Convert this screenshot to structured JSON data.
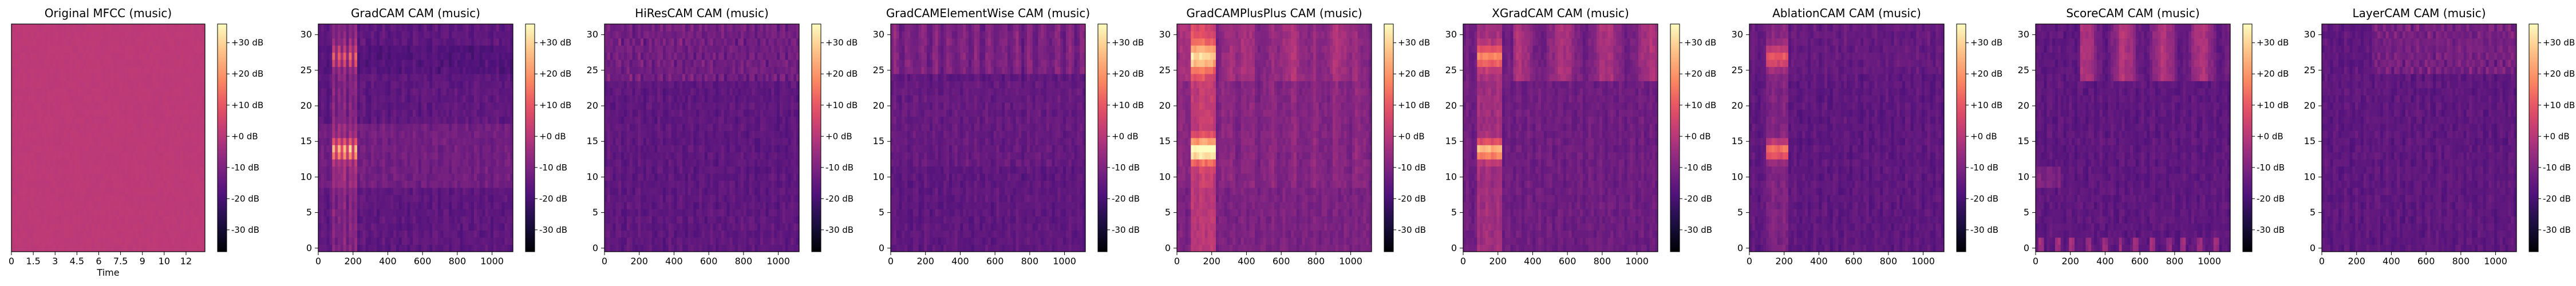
{
  "figure": {
    "colormap": "magma",
    "panels": [
      {
        "title": "Original MFCC (music)",
        "kind": "mfcc"
      },
      {
        "title": "GradCAM CAM (music)",
        "kind": "gradcam"
      },
      {
        "title": "HiResCAM CAM (music)",
        "kind": "hires"
      },
      {
        "title": "GradCAMElementWise CAM (music)",
        "kind": "elementwise"
      },
      {
        "title": "GradCAMPlusPlus CAM (music)",
        "kind": "plusplus"
      },
      {
        "title": "XGradCAM CAM (music)",
        "kind": "xgrad"
      },
      {
        "title": "AblationCAM CAM (music)",
        "kind": "ablation"
      },
      {
        "title": "ScoreCAM CAM (music)",
        "kind": "score"
      },
      {
        "title": "LayerCAM CAM (music)",
        "kind": "layer"
      }
    ]
  },
  "chart_data": [
    {
      "type": "heatmap",
      "title": "Original MFCC (music)",
      "xlabel": "Time",
      "ylabel": "",
      "x_ticks": [
        "0",
        "1.5",
        "3",
        "4.5",
        "6",
        "7.5",
        "9",
        "10",
        "12"
      ],
      "y_ticks": [],
      "colorbar_ticks": [
        "+30 dB",
        "+20 dB",
        "+10 dB",
        "+0 dB",
        "-10 dB",
        "-20 dB",
        "-30 dB"
      ],
      "colorbar_range": [
        -37,
        36
      ],
      "colormap": "magma",
      "description_values": "uniform values near +0 dB across the whole field"
    },
    {
      "type": "heatmap",
      "title": "GradCAM CAM (music)",
      "xlabel": "",
      "ylabel": "",
      "x_ticks": [
        "0",
        "200",
        "400",
        "600",
        "800",
        "1000"
      ],
      "y_ticks": [
        "0",
        "5",
        "10",
        "15",
        "20",
        "25",
        "30"
      ],
      "xlim": [
        0,
        1120
      ],
      "ylim": [
        -0.5,
        31.5
      ],
      "colorbar_ticks": [
        "+30 dB",
        "+20 dB",
        "+10 dB",
        "+0 dB",
        "-10 dB",
        "-20 dB",
        "-30 dB"
      ],
      "colorbar_range": [
        -37,
        36
      ],
      "colormap": "magma"
    },
    {
      "type": "heatmap",
      "title": "HiResCAM CAM (music)",
      "xlabel": "",
      "ylabel": "",
      "x_ticks": [
        "0",
        "200",
        "400",
        "600",
        "800",
        "1000"
      ],
      "y_ticks": [
        "0",
        "5",
        "10",
        "15",
        "20",
        "25",
        "30"
      ],
      "xlim": [
        0,
        1120
      ],
      "ylim": [
        -0.5,
        31.5
      ],
      "colorbar_ticks": [
        "+30 dB",
        "+20 dB",
        "+10 dB",
        "+0 dB",
        "-10 dB",
        "-20 dB",
        "-30 dB"
      ],
      "colorbar_range": [
        -37,
        36
      ],
      "colormap": "magma"
    },
    {
      "type": "heatmap",
      "title": "GradCAMElementWise CAM (music)",
      "xlabel": "",
      "ylabel": "",
      "x_ticks": [
        "0",
        "200",
        "400",
        "600",
        "800",
        "1000"
      ],
      "y_ticks": [
        "0",
        "5",
        "10",
        "15",
        "20",
        "25",
        "30"
      ],
      "xlim": [
        0,
        1120
      ],
      "ylim": [
        -0.5,
        31.5
      ],
      "colorbar_ticks": [
        "+30 dB",
        "+20 dB",
        "+10 dB",
        "+0 dB",
        "-10 dB",
        "-20 dB",
        "-30 dB"
      ],
      "colorbar_range": [
        -37,
        36
      ],
      "colormap": "magma"
    },
    {
      "type": "heatmap",
      "title": "GradCAMPlusPlus CAM (music)",
      "xlabel": "",
      "ylabel": "",
      "x_ticks": [
        "0",
        "200",
        "400",
        "600",
        "800",
        "1000"
      ],
      "y_ticks": [
        "0",
        "5",
        "10",
        "15",
        "20",
        "25",
        "30"
      ],
      "xlim": [
        0,
        1120
      ],
      "ylim": [
        -0.5,
        31.5
      ],
      "colorbar_ticks": [
        "+30 dB",
        "+20 dB",
        "+10 dB",
        "+0 dB",
        "-10 dB",
        "-20 dB",
        "-30 dB"
      ],
      "colorbar_range": [
        -37,
        36
      ],
      "colormap": "magma"
    },
    {
      "type": "heatmap",
      "title": "XGradCAM CAM (music)",
      "xlabel": "",
      "ylabel": "",
      "x_ticks": [
        "0",
        "200",
        "400",
        "600",
        "800",
        "1000"
      ],
      "y_ticks": [
        "0",
        "5",
        "10",
        "15",
        "20",
        "25",
        "30"
      ],
      "xlim": [
        0,
        1120
      ],
      "ylim": [
        -0.5,
        31.5
      ],
      "colorbar_ticks": [
        "+30 dB",
        "+20 dB",
        "+10 dB",
        "+0 dB",
        "-10 dB",
        "-20 dB",
        "-30 dB"
      ],
      "colorbar_range": [
        -37,
        36
      ],
      "colormap": "magma"
    },
    {
      "type": "heatmap",
      "title": "AblationCAM CAM (music)",
      "xlabel": "",
      "ylabel": "",
      "x_ticks": [
        "0",
        "200",
        "400",
        "600",
        "800",
        "1000"
      ],
      "y_ticks": [
        "0",
        "5",
        "10",
        "15",
        "20",
        "25",
        "30"
      ],
      "xlim": [
        0,
        1120
      ],
      "ylim": [
        -0.5,
        31.5
      ],
      "colorbar_ticks": [
        "+30 dB",
        "+20 dB",
        "+10 dB",
        "+0 dB",
        "-10 dB",
        "-20 dB",
        "-30 dB"
      ],
      "colorbar_range": [
        -37,
        36
      ],
      "colormap": "magma"
    },
    {
      "type": "heatmap",
      "title": "ScoreCAM CAM (music)",
      "xlabel": "",
      "ylabel": "",
      "x_ticks": [
        "0",
        "200",
        "400",
        "600",
        "800",
        "1000"
      ],
      "y_ticks": [
        "0",
        "5",
        "10",
        "15",
        "20",
        "25",
        "30"
      ],
      "xlim": [
        0,
        1120
      ],
      "ylim": [
        -0.5,
        31.5
      ],
      "colorbar_ticks": [
        "+30 dB",
        "+20 dB",
        "+10 dB",
        "+0 dB",
        "-10 dB",
        "-20 dB",
        "-30 dB"
      ],
      "colorbar_range": [
        -37,
        36
      ],
      "colormap": "magma"
    },
    {
      "type": "heatmap",
      "title": "LayerCAM CAM (music)",
      "xlabel": "",
      "ylabel": "",
      "x_ticks": [
        "0",
        "200",
        "400",
        "600",
        "800",
        "1000"
      ],
      "y_ticks": [
        "0",
        "5",
        "10",
        "15",
        "20",
        "25",
        "30"
      ],
      "xlim": [
        0,
        1120
      ],
      "ylim": [
        -0.5,
        31.5
      ],
      "colorbar_ticks": [
        "+30 dB",
        "+20 dB",
        "+10 dB",
        "+0 dB",
        "-10 dB",
        "-20 dB",
        "-30 dB"
      ],
      "colorbar_range": [
        -37,
        36
      ],
      "colormap": "magma"
    }
  ]
}
